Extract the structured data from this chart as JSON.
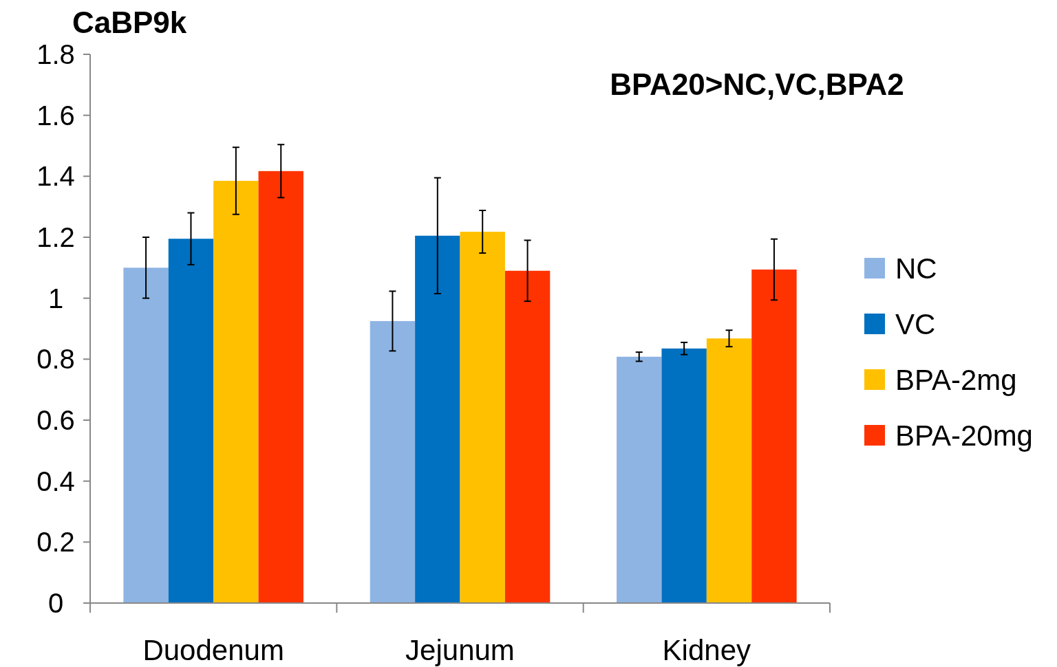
{
  "chart_data": {
    "type": "bar",
    "title": "CaBP9k",
    "categories": [
      "Duodenum",
      "Jejunum",
      "Kidney"
    ],
    "series": [
      {
        "name": "NC",
        "color": "#8eb4e3",
        "values": [
          1.1,
          0.925,
          0.808
        ],
        "errors": [
          0.1,
          0.098,
          0.015
        ]
      },
      {
        "name": "VC",
        "color": "#0070c0",
        "values": [
          1.195,
          1.205,
          0.835
        ],
        "errors": [
          0.085,
          0.19,
          0.02
        ]
      },
      {
        "name": "BPA-2mg",
        "color": "#ffc000",
        "values": [
          1.385,
          1.218,
          0.868
        ],
        "errors": [
          0.11,
          0.07,
          0.027
        ]
      },
      {
        "name": "BPA-20mg",
        "color": "#ff3300",
        "values": [
          1.417,
          1.09,
          1.094
        ],
        "errors": [
          0.087,
          0.1,
          0.1
        ]
      }
    ],
    "annotations": [
      "BPA20>NC,VC,BPA2"
    ],
    "ylim": [
      0,
      1.8
    ],
    "yticks": [
      0,
      0.2,
      0.4,
      0.6,
      0.8,
      1,
      1.2,
      1.4,
      1.6,
      1.8
    ],
    "legend": "right",
    "grid": false
  }
}
